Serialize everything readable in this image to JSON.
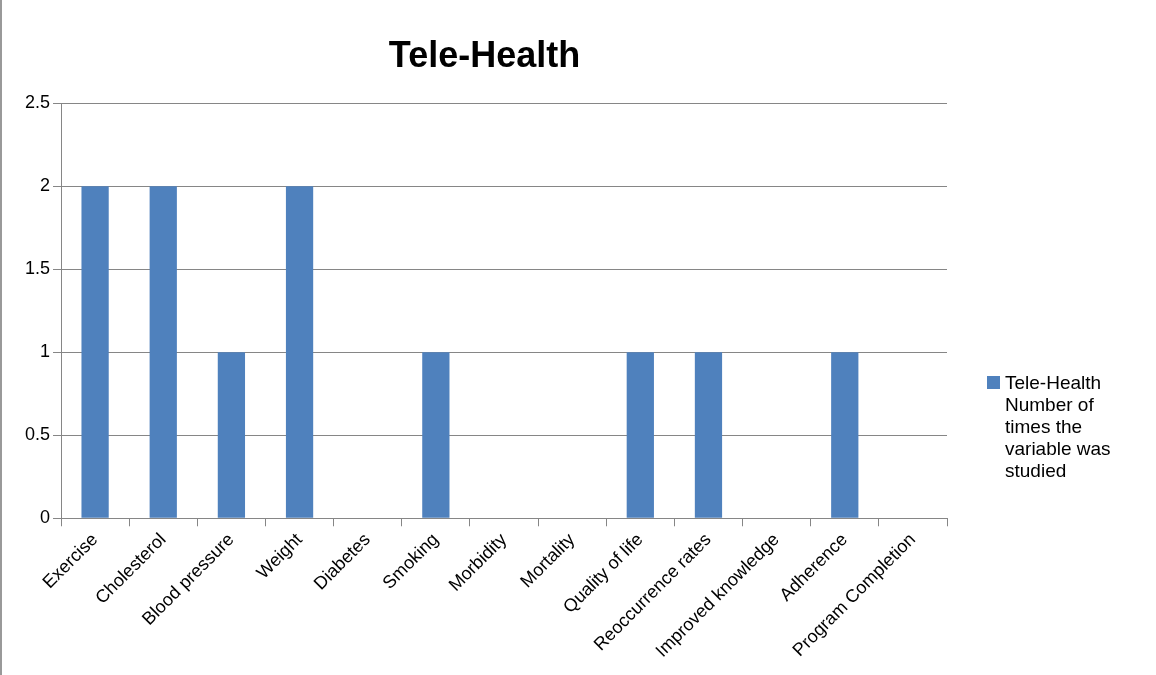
{
  "chart_data": {
    "type": "bar",
    "title": "Tele-Health",
    "categories": [
      "Exercise",
      "Cholesterol",
      "Blood pressure",
      "Weight",
      "Diabetes",
      "Smoking",
      "Morbidity",
      "Mortality",
      "Quality of life",
      "Reoccurrence rates",
      "Improved knowledge",
      "Adherence",
      "Program Completion"
    ],
    "series": [
      {
        "name": "Tele-Health Number of times the variable was studied",
        "color": "#4f81bd",
        "values": [
          2,
          2,
          1,
          2,
          0,
          1,
          0,
          0,
          1,
          1,
          0,
          1,
          0
        ]
      }
    ],
    "ylim": [
      0,
      2.5
    ],
    "yticks": [
      0,
      0.5,
      1,
      1.5,
      2,
      2.5
    ],
    "grid": "y",
    "legend": "right"
  }
}
